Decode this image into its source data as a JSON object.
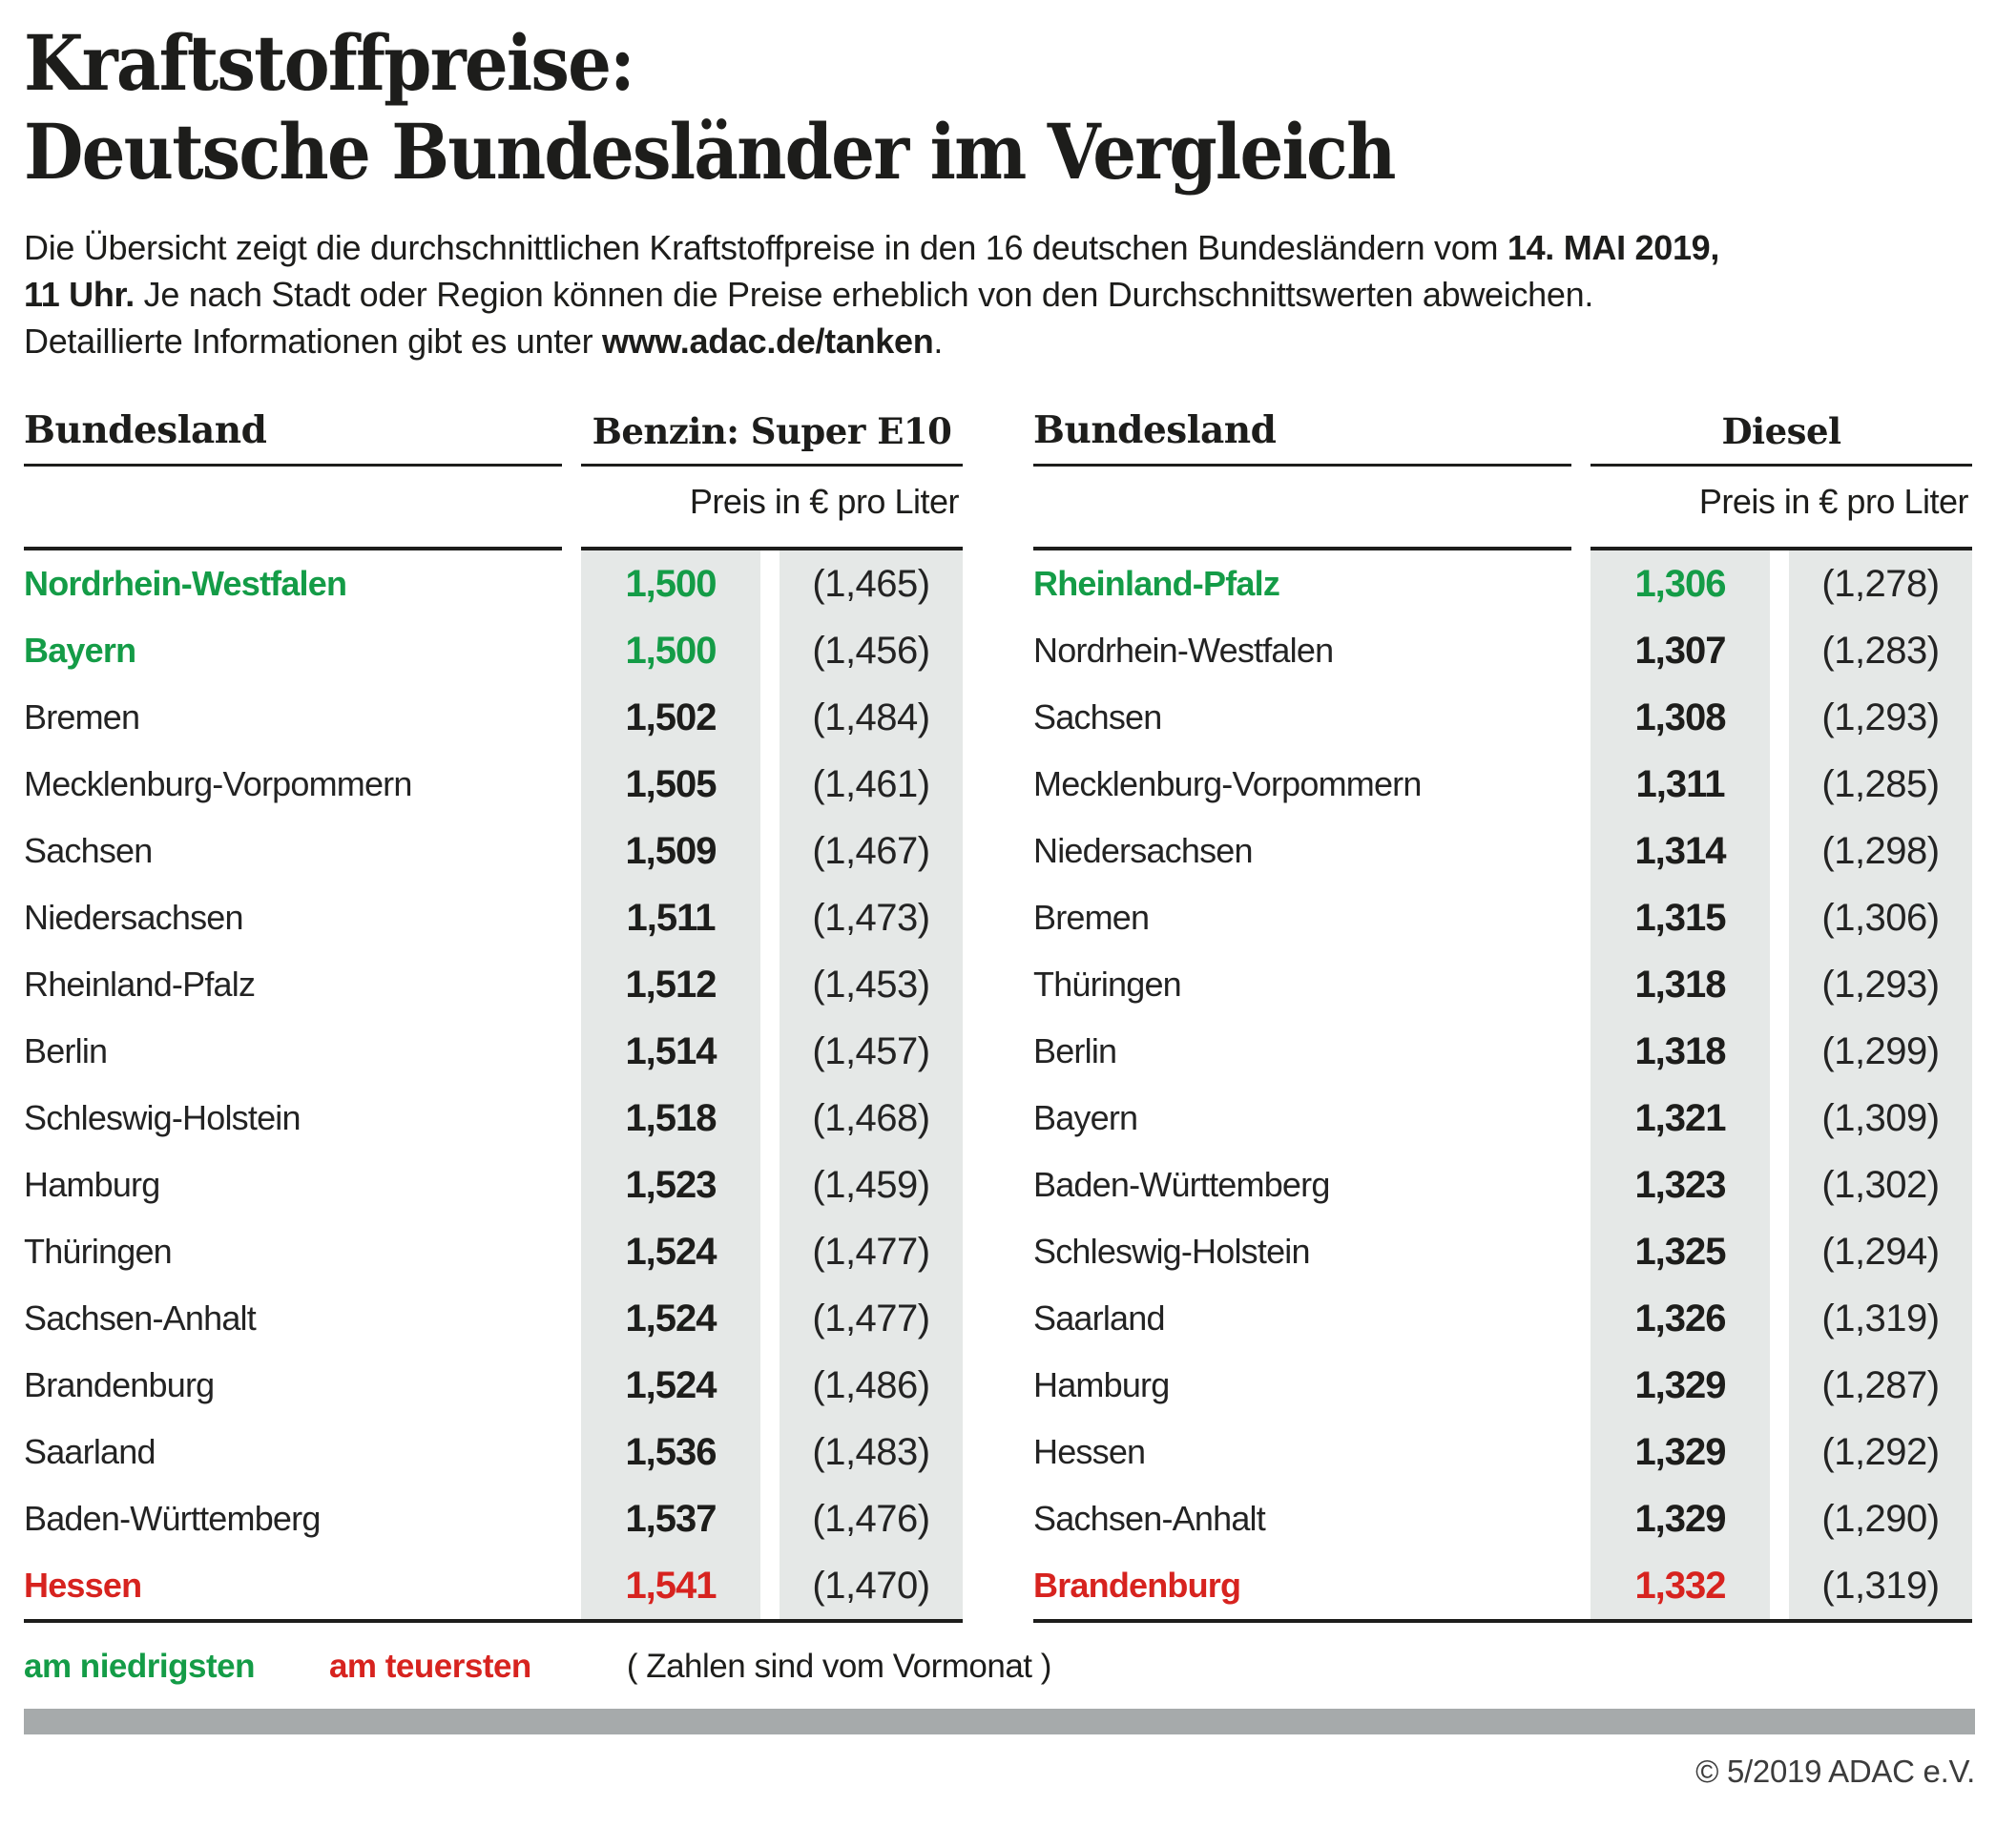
{
  "title": {
    "line1": "Kraftstoffpreise:",
    "line2": "Deutsche Bundesländer im Vergleich"
  },
  "intro_lines": [
    [
      {
        "t": "Die Übersicht zeigt die durchschnittlichen Kraftstoffpreise in den 16 deutschen Bundesländern vom ",
        "b": false
      },
      {
        "t": "14. MAI 2019,",
        "b": true
      }
    ],
    [
      {
        "t": "11 Uhr.",
        "b": true
      },
      {
        "t": " Je nach Stadt oder Region können die Preise erheblich von den Durchschnittswerten abweichen.",
        "b": false
      }
    ],
    [
      {
        "t": "Detaillierte Informationen gibt es unter ",
        "b": false
      },
      {
        "t": "www.adac.de/tanken",
        "b": true
      },
      {
        "t": ".",
        "b": false
      }
    ]
  ],
  "chart_data": {
    "type": "table",
    "title": "Kraftstoffpreise: Deutsche Bundesländer im Vergleich",
    "date_shown": "14. MAI 2019, 11 Uhr",
    "tables": [
      {
        "state_header": "Bundesland",
        "fuel_header": "Benzin: Super E10",
        "unit_header": "Preis in € pro Liter",
        "rows": [
          {
            "state": "Nordrhein-Westfalen",
            "price": "1,500",
            "prev": "(1,465)",
            "highlight": "lowest"
          },
          {
            "state": "Bayern",
            "price": "1,500",
            "prev": "(1,456)",
            "highlight": "lowest"
          },
          {
            "state": "Bremen",
            "price": "1,502",
            "prev": "(1,484)",
            "highlight": ""
          },
          {
            "state": "Mecklenburg-Vorpommern",
            "price": "1,505",
            "prev": "(1,461)",
            "highlight": ""
          },
          {
            "state": "Sachsen",
            "price": "1,509",
            "prev": "(1,467)",
            "highlight": ""
          },
          {
            "state": "Niedersachsen",
            "price": "1,511",
            "prev": "(1,473)",
            "highlight": ""
          },
          {
            "state": "Rheinland-Pfalz",
            "price": "1,512",
            "prev": "(1,453)",
            "highlight": ""
          },
          {
            "state": "Berlin",
            "price": "1,514",
            "prev": "(1,457)",
            "highlight": ""
          },
          {
            "state": "Schleswig-Holstein",
            "price": "1,518",
            "prev": "(1,468)",
            "highlight": ""
          },
          {
            "state": "Hamburg",
            "price": "1,523",
            "prev": "(1,459)",
            "highlight": ""
          },
          {
            "state": "Thüringen",
            "price": "1,524",
            "prev": "(1,477)",
            "highlight": ""
          },
          {
            "state": "Sachsen-Anhalt",
            "price": "1,524",
            "prev": "(1,477)",
            "highlight": ""
          },
          {
            "state": "Brandenburg",
            "price": "1,524",
            "prev": "(1,486)",
            "highlight": ""
          },
          {
            "state": "Saarland",
            "price": "1,536",
            "prev": "(1,483)",
            "highlight": ""
          },
          {
            "state": "Baden-Württemberg",
            "price": "1,537",
            "prev": "(1,476)",
            "highlight": ""
          },
          {
            "state": "Hessen",
            "price": "1,541",
            "prev": "(1,470)",
            "highlight": "highest"
          }
        ]
      },
      {
        "state_header": "Bundesland",
        "fuel_header": "Diesel",
        "unit_header": "Preis in € pro Liter",
        "rows": [
          {
            "state": "Rheinland-Pfalz",
            "price": "1,306",
            "prev": "(1,278)",
            "highlight": "lowest"
          },
          {
            "state": "Nordrhein-Westfalen",
            "price": "1,307",
            "prev": "(1,283)",
            "highlight": ""
          },
          {
            "state": "Sachsen",
            "price": "1,308",
            "prev": "(1,293)",
            "highlight": ""
          },
          {
            "state": "Mecklenburg-Vorpommern",
            "price": "1,311",
            "prev": "(1,285)",
            "highlight": ""
          },
          {
            "state": "Niedersachsen",
            "price": "1,314",
            "prev": "(1,298)",
            "highlight": ""
          },
          {
            "state": "Bremen",
            "price": "1,315",
            "prev": "(1,306)",
            "highlight": ""
          },
          {
            "state": "Thüringen",
            "price": "1,318",
            "prev": "(1,293)",
            "highlight": ""
          },
          {
            "state": "Berlin",
            "price": "1,318",
            "prev": "(1,299)",
            "highlight": ""
          },
          {
            "state": "Bayern",
            "price": "1,321",
            "prev": "(1,309)",
            "highlight": ""
          },
          {
            "state": "Baden-Württemberg",
            "price": "1,323",
            "prev": "(1,302)",
            "highlight": ""
          },
          {
            "state": "Schleswig-Holstein",
            "price": "1,325",
            "prev": "(1,294)",
            "highlight": ""
          },
          {
            "state": "Saarland",
            "price": "1,326",
            "prev": "(1,319)",
            "highlight": ""
          },
          {
            "state": "Hamburg",
            "price": "1,329",
            "prev": "(1,287)",
            "highlight": ""
          },
          {
            "state": "Hessen",
            "price": "1,329",
            "prev": "(1,292)",
            "highlight": ""
          },
          {
            "state": "Sachsen-Anhalt",
            "price": "1,329",
            "prev": "(1,290)",
            "highlight": ""
          },
          {
            "state": "Brandenburg",
            "price": "1,332",
            "prev": "(1,319)",
            "highlight": "highest"
          }
        ]
      }
    ]
  },
  "legend": {
    "lowest_label": "am niedrigsten",
    "highest_label": "am teuersten",
    "note": "( Zahlen sind vom Vormonat )"
  },
  "footer": {
    "copyright": "© 5/2019 ADAC e.V."
  },
  "colors": {
    "lowest": "#149c47",
    "highest": "#d7231f",
    "cell_bg": "#e5e8e7",
    "divider_bar": "#a6aaab"
  }
}
